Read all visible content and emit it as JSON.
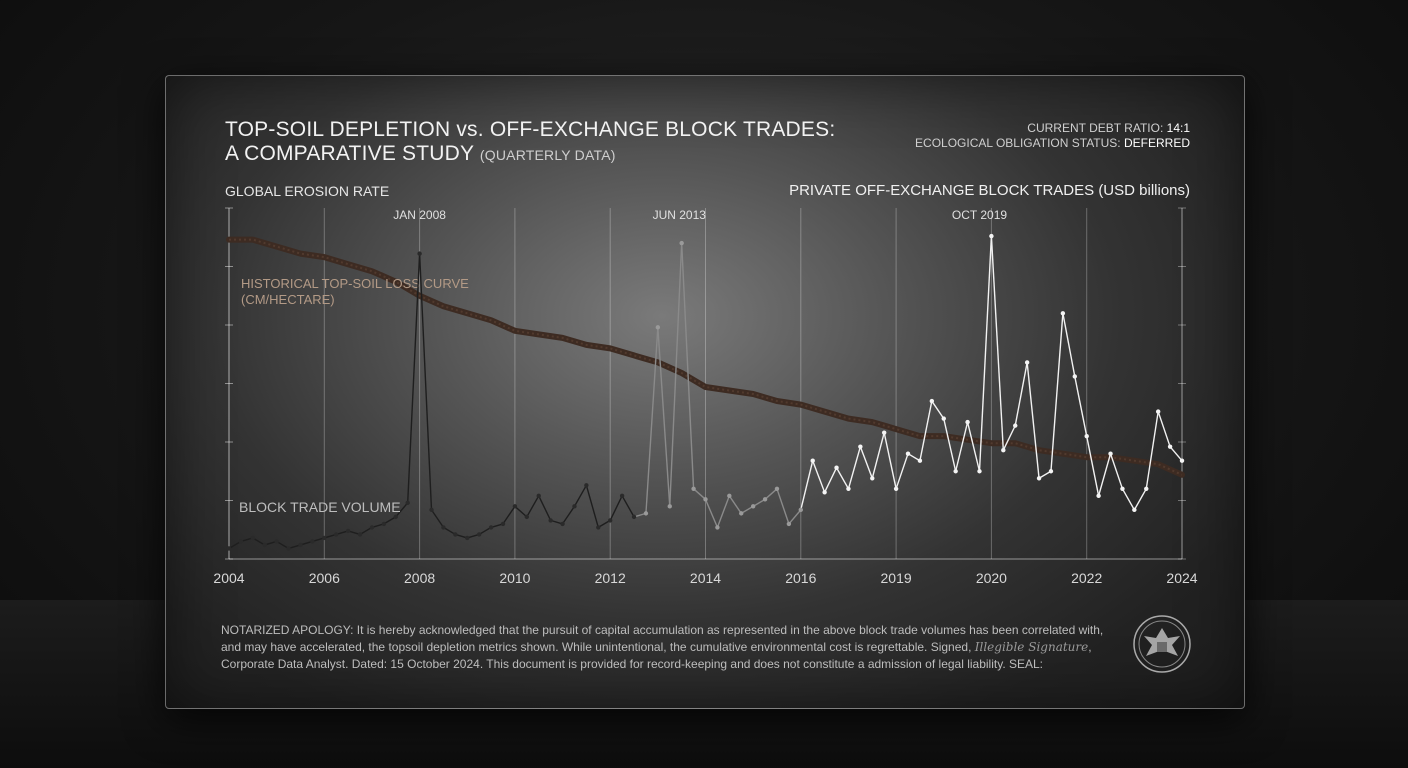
{
  "title": {
    "line1": "TOP-SOIL DEPLETION vs. OFF-EXCHANGE BLOCK TRADES:",
    "line2": "A COMPARATIVE STUDY",
    "line2_sub": "(QUARTERLY DATA)"
  },
  "meta": {
    "debt_label": "CURRENT DEBT RATIO:",
    "debt_value": "14:1",
    "status_label": "ECOLOGICAL OBLIGATION STATUS:",
    "status_value": "DEFERRED"
  },
  "axis_left_label": "GLOBAL EROSION RATE",
  "axis_right_label": "PRIVATE OFF-EXCHANGE BLOCK TRADES (USD billions)",
  "apology": {
    "part1": "NOTARIZED APOLOGY: It is hereby acknowledged that the pursuit of capital accumulation as represented in the above block trade volumes has been correlated with, and may have accelerated, the topsoil depletion metrics shown. While unintentional, the cumulative environmental cost is regrettable. Signed, ",
    "signature": "Illegible Signature",
    "part2": ", Corporate Data Analyst. Dated: 15 October 2024. This document is provided for record-keeping and does not constitute a admission of legal liability. SEAL:"
  },
  "colors": {
    "soil_curve": "#3d2b22",
    "trade_light": "#f2f2f2",
    "trade_dark": "#1e1e1e"
  },
  "chart_data": {
    "type": "line",
    "x_tick_labels": [
      "2004",
      "2006",
      "2008",
      "2010",
      "2012",
      "2014",
      "2016",
      "2019",
      "2020",
      "2022",
      "2024"
    ],
    "x_range": [
      2004,
      2024
    ],
    "y_range": [
      0,
      100
    ],
    "grid": "vertical",
    "annotations": [
      {
        "label": "JAN 2008",
        "x": 2008.0
      },
      {
        "label": "JUN 2013",
        "x": 2013.45
      },
      {
        "label": "OCT 2019",
        "x": 2019.75
      }
    ],
    "series": [
      {
        "name": "HISTORICAL TOP-SOIL LOSS CURVE (CM/HECTARE)",
        "role": "soil",
        "x": [
          2004,
          2004.5,
          2005,
          2005.5,
          2006,
          2006.5,
          2007,
          2007.5,
          2008,
          2008.5,
          2009,
          2009.5,
          2010,
          2010.5,
          2011,
          2011.5,
          2012,
          2012.5,
          2013,
          2013.5,
          2014,
          2014.5,
          2015,
          2015.5,
          2016,
          2016.5,
          2017,
          2017.5,
          2018,
          2018.5,
          2019,
          2019.5,
          2020,
          2020.5,
          2021,
          2021.5,
          2022,
          2022.5,
          2023,
          2023.5,
          2024
        ],
        "values": [
          91,
          91,
          89,
          87,
          86,
          84,
          82,
          79,
          75,
          72,
          70,
          68,
          65,
          64,
          63,
          61,
          60,
          58,
          56,
          53,
          49,
          48,
          47,
          45,
          44,
          42,
          40,
          39,
          37,
          35,
          35,
          34,
          33,
          33,
          31,
          30,
          29,
          29,
          28,
          27,
          24
        ]
      },
      {
        "name": "BLOCK TRADE VOLUME",
        "role": "trades",
        "x": [
          2004,
          2004.25,
          2004.5,
          2004.75,
          2005,
          2005.25,
          2005.5,
          2005.75,
          2006,
          2006.25,
          2006.5,
          2006.75,
          2007,
          2007.25,
          2007.5,
          2007.75,
          2008,
          2008.25,
          2008.5,
          2008.75,
          2009,
          2009.25,
          2009.5,
          2009.75,
          2010,
          2010.25,
          2010.5,
          2010.75,
          2011,
          2011.25,
          2011.5,
          2011.75,
          2012,
          2012.25,
          2012.5,
          2012.75,
          2013,
          2013.25,
          2013.5,
          2013.75,
          2014,
          2014.25,
          2014.5,
          2014.75,
          2015,
          2015.25,
          2015.5,
          2015.75,
          2016,
          2016.25,
          2016.5,
          2016.75,
          2017,
          2017.25,
          2017.5,
          2017.75,
          2018,
          2018.25,
          2018.5,
          2018.75,
          2019,
          2019.25,
          2019.5,
          2019.75,
          2020,
          2020.25,
          2020.5,
          2020.75,
          2021,
          2021.25,
          2021.5,
          2021.75,
          2022,
          2022.25,
          2022.5,
          2022.75,
          2023,
          2023.25,
          2023.5,
          2023.75,
          2024
        ],
        "values": [
          3,
          5,
          6,
          4,
          5,
          3,
          4,
          5,
          6,
          7,
          8,
          7,
          9,
          10,
          12,
          16,
          87,
          14,
          9,
          7,
          6,
          7,
          9,
          10,
          15,
          12,
          18,
          11,
          10,
          15,
          21,
          9,
          11,
          18,
          12,
          13,
          66,
          15,
          90,
          20,
          17,
          9,
          18,
          13,
          15,
          17,
          20,
          10,
          14,
          28,
          19,
          26,
          20,
          32,
          23,
          36,
          20,
          30,
          28,
          45,
          40,
          25,
          39,
          25,
          92,
          31,
          38,
          56,
          23,
          25,
          70,
          52,
          35,
          18,
          30,
          20,
          14,
          20,
          42,
          32,
          28
        ]
      }
    ]
  }
}
